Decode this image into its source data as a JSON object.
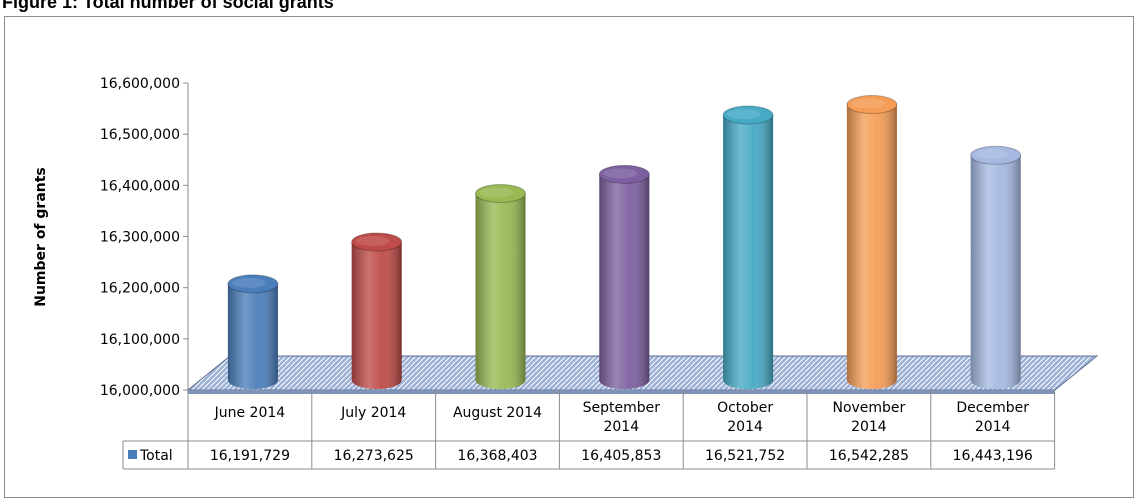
{
  "title": "Figure 1: Total number of social grants",
  "colors": {
    "bars": [
      "#4a7ebb",
      "#be4b48",
      "#98b954",
      "#7d60a0",
      "#46aac5",
      "#f59d56",
      "#a5b9e0"
    ],
    "floor": "#9aaed0",
    "border": "#8c8c8c"
  },
  "chart_data": {
    "type": "bar",
    "style": "3d-cylinder",
    "ylabel": "Number of grants",
    "xlabel": "",
    "ylim": [
      16000000,
      16600000
    ],
    "yticks": [
      "16,000,000",
      "16,100,000",
      "16,200,000",
      "16,300,000",
      "16,400,000",
      "16,500,000",
      "16,600,000"
    ],
    "categories": [
      [
        "June 2014"
      ],
      [
        "July 2014"
      ],
      [
        "August 2014"
      ],
      [
        "September",
        "2014"
      ],
      [
        "October",
        "2014"
      ],
      [
        "November",
        "2014"
      ],
      [
        "December",
        "2014"
      ]
    ],
    "series": [
      {
        "name": "Total",
        "values": [
          16191729,
          16273625,
          16368403,
          16405853,
          16521752,
          16542285,
          16443196
        ],
        "labels": [
          "16,191,729",
          "16,273,625",
          "16,368,403",
          "16,405,853",
          "16,521,752",
          "16,542,285",
          "16,443,196"
        ]
      }
    ],
    "data_table": true,
    "grid": false
  }
}
